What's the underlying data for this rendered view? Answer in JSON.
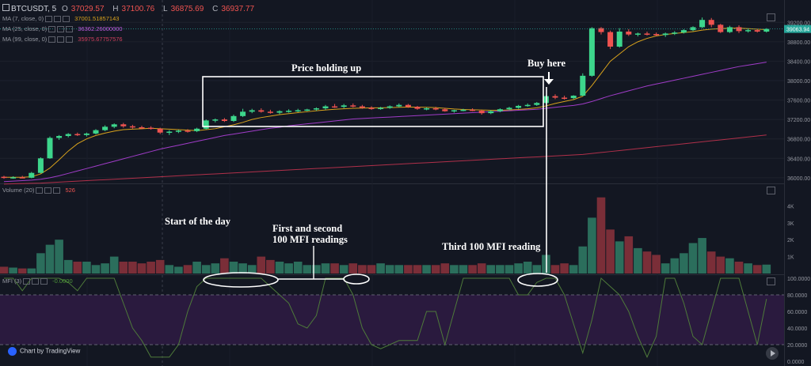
{
  "header": {
    "symbol": "BTCUSDT, 5",
    "open_label": "O",
    "open": "37029.57",
    "high_label": "H",
    "high": "37100.76",
    "low_label": "L",
    "low": "36875.69",
    "close_label": "C",
    "close": "36937.77"
  },
  "legends": {
    "ma7": {
      "label": "MA (7, close, 0)",
      "value": "37001.51857143"
    },
    "ma25": {
      "label": "MA (25, close, 0)",
      "value": "36362.26000000"
    },
    "ma99": {
      "label": "MA (99, close, 0)",
      "value": "35975.67757576"
    },
    "volume": {
      "label": "Volume (20)",
      "value": "526"
    },
    "mfi": {
      "label": "MFI (3)",
      "value": "-0.0000"
    }
  },
  "annotations": {
    "price_holding": "Price holding up",
    "buy_here": "Buy here",
    "start_of_day": "Start of the day",
    "first_second_line1": "First and second",
    "first_second_line2": "100 MFI readings",
    "third": "Third 100 MFI reading"
  },
  "branding": {
    "text": "Chart by TradingView"
  },
  "colors": {
    "background": "#131722",
    "up": "#26a69a",
    "up_bright": "#3dd68c",
    "down": "#ef5350",
    "volume_up": "#2b6e5c",
    "volume_down": "#7a2e38",
    "ma7": "#d8a21c",
    "ma25": "#a03cc8",
    "ma99": "#b0304a",
    "mfi_line": "#4e7a3a",
    "mfi_band": "#2a1a3e",
    "price_tag": "#26a69a"
  },
  "chart_data": [
    {
      "type": "candlestick",
      "title": "BTCUSDT, 5",
      "ylim": [
        35900,
        39400
      ],
      "y_ticks": [
        36000,
        36400,
        36800,
        37200,
        37600,
        38000,
        38400,
        38800,
        39200
      ],
      "y_tick_labels": [
        "36000.00",
        "36400.00",
        "36800.00",
        "37200.00",
        "37600.00",
        "38000.00",
        "38400.00",
        "38800.00",
        "39200.00"
      ],
      "last_price_label": "39063.94",
      "last_price": 39063.94,
      "ohlc": [
        [
          36020,
          36040,
          35980,
          36000
        ],
        [
          36000,
          36030,
          35980,
          36010
        ],
        [
          36010,
          36040,
          35990,
          36000
        ],
        [
          36000,
          36120,
          35990,
          36100
        ],
        [
          36100,
          36420,
          36090,
          36400
        ],
        [
          36400,
          36850,
          36390,
          36820
        ],
        [
          36820,
          36880,
          36780,
          36860
        ],
        [
          36860,
          36920,
          36830,
          36900
        ],
        [
          36900,
          36930,
          36860,
          36880
        ],
        [
          36880,
          36930,
          36850,
          36910
        ],
        [
          36910,
          37000,
          36890,
          36980
        ],
        [
          36980,
          37080,
          36960,
          37050
        ],
        [
          37050,
          37120,
          37020,
          37100
        ],
        [
          37100,
          37130,
          37030,
          37060
        ],
        [
          37060,
          37090,
          37010,
          37040
        ],
        [
          37040,
          37070,
          37000,
          37030
        ],
        [
          37030,
          37060,
          36990,
          37010
        ],
        [
          37010,
          37030,
          36900,
          36930
        ],
        [
          36930,
          36980,
          36880,
          36950
        ],
        [
          36950,
          36990,
          36920,
          36970
        ],
        [
          36970,
          37000,
          36930,
          36960
        ],
        [
          36960,
          37030,
          36940,
          37010
        ],
        [
          37010,
          37200,
          36990,
          37180
        ],
        [
          37180,
          37220,
          37140,
          37200
        ],
        [
          37200,
          37230,
          37150,
          37170
        ],
        [
          37170,
          37300,
          37150,
          37270
        ],
        [
          37270,
          37420,
          37250,
          37360
        ],
        [
          37360,
          37420,
          37330,
          37390
        ],
        [
          37390,
          37430,
          37340,
          37360
        ],
        [
          37360,
          37400,
          37320,
          37340
        ],
        [
          37340,
          37390,
          37310,
          37370
        ],
        [
          37370,
          37410,
          37340,
          37380
        ],
        [
          37380,
          37420,
          37350,
          37390
        ],
        [
          37390,
          37420,
          37370,
          37405
        ],
        [
          37405,
          37450,
          37380,
          37430
        ],
        [
          37430,
          37500,
          37400,
          37470
        ],
        [
          37470,
          37520,
          37440,
          37460
        ],
        [
          37460,
          37520,
          37430,
          37490
        ],
        [
          37490,
          37530,
          37450,
          37470
        ],
        [
          37470,
          37500,
          37420,
          37440
        ],
        [
          37440,
          37470,
          37400,
          37420
        ],
        [
          37420,
          37460,
          37400,
          37440
        ],
        [
          37440,
          37490,
          37420,
          37470
        ],
        [
          37470,
          37530,
          37450,
          37500
        ],
        [
          37500,
          37520,
          37440,
          37460
        ],
        [
          37460,
          37480,
          37400,
          37420
        ],
        [
          37420,
          37450,
          37390,
          37430
        ],
        [
          37430,
          37460,
          37390,
          37410
        ],
        [
          37410,
          37440,
          37360,
          37370
        ],
        [
          37370,
          37400,
          37340,
          37390
        ],
        [
          37390,
          37420,
          37370,
          37400
        ],
        [
          37400,
          37430,
          37370,
          37380
        ],
        [
          37380,
          37400,
          37300,
          37330
        ],
        [
          37330,
          37390,
          37310,
          37370
        ],
        [
          37370,
          37430,
          37350,
          37410
        ],
        [
          37410,
          37460,
          37390,
          37440
        ],
        [
          37440,
          37500,
          37420,
          37480
        ],
        [
          37480,
          37530,
          37460,
          37500
        ],
        [
          37500,
          37560,
          37480,
          37540
        ],
        [
          37540,
          37700,
          37520,
          37680
        ],
        [
          37680,
          37720,
          37620,
          37650
        ],
        [
          37650,
          37690,
          37610,
          37640
        ],
        [
          37640,
          37700,
          37620,
          37690
        ],
        [
          37690,
          38150,
          37680,
          38100
        ],
        [
          38100,
          39100,
          38080,
          39080
        ],
        [
          39080,
          39100,
          38950,
          39000
        ],
        [
          39000,
          39030,
          38650,
          38700
        ],
        [
          38700,
          39080,
          38680,
          39010
        ],
        [
          39010,
          39060,
          38920,
          38950
        ],
        [
          38950,
          38990,
          38910,
          38970
        ],
        [
          38970,
          39010,
          38930,
          38960
        ],
        [
          38960,
          38990,
          38920,
          38940
        ],
        [
          38940,
          38990,
          38900,
          38970
        ],
        [
          38970,
          39020,
          38940,
          38990
        ],
        [
          38990,
          39060,
          38970,
          39040
        ],
        [
          39040,
          39120,
          39020,
          39100
        ],
        [
          39100,
          39300,
          39080,
          39250
        ],
        [
          39250,
          39290,
          39100,
          39150
        ],
        [
          39150,
          39170,
          38980,
          39000
        ],
        [
          39000,
          39130,
          38980,
          39100
        ],
        [
          39100,
          39140,
          38980,
          39020
        ],
        [
          39020,
          39070,
          38990,
          39040
        ],
        [
          39040,
          39060,
          38990,
          39010
        ],
        [
          39010,
          39080,
          38990,
          39063.94
        ]
      ],
      "series": [
        {
          "name": "MA (7, close, 0)",
          "color": "#d8a21c",
          "values": [
            36010,
            36010,
            36010,
            36020,
            36080,
            36200,
            36370,
            36550,
            36700,
            36800,
            36870,
            36920,
            36960,
            36990,
            37000,
            37010,
            37020,
            37010,
            37000,
            36990,
            36980,
            36970,
            36990,
            37010,
            37050,
            37090,
            37140,
            37200,
            37240,
            37270,
            37300,
            37320,
            37340,
            37360,
            37380,
            37395,
            37410,
            37420,
            37430,
            37435,
            37440,
            37440,
            37445,
            37450,
            37455,
            37455,
            37450,
            37445,
            37430,
            37415,
            37405,
            37400,
            37395,
            37390,
            37390,
            37395,
            37405,
            37420,
            37440,
            37480,
            37530,
            37570,
            37610,
            37680,
            37900,
            38150,
            38400,
            38550,
            38700,
            38800,
            38870,
            38920,
            38950,
            38970,
            38990,
            39010,
            39040,
            39060,
            39070,
            39080,
            39080,
            39070,
            39060,
            39050
          ]
        },
        {
          "name": "MA (25, close, 0)",
          "color": "#a03cc8",
          "values": [
            35920,
            35930,
            35940,
            35950,
            35970,
            36000,
            36040,
            36090,
            36140,
            36190,
            36240,
            36290,
            36340,
            36390,
            36440,
            36490,
            36540,
            36590,
            36630,
            36670,
            36710,
            36750,
            36790,
            36830,
            36870,
            36900,
            36930,
            36960,
            36990,
            37020,
            37040,
            37070,
            37090,
            37110,
            37130,
            37150,
            37170,
            37190,
            37210,
            37220,
            37230,
            37240,
            37250,
            37260,
            37270,
            37280,
            37290,
            37300,
            37310,
            37320,
            37330,
            37340,
            37350,
            37360,
            37370,
            37380,
            37390,
            37400,
            37410,
            37430,
            37450,
            37470,
            37490,
            37520,
            37570,
            37630,
            37690,
            37740,
            37790,
            37840,
            37890,
            37930,
            37970,
            38010,
            38050,
            38090,
            38130,
            38170,
            38210,
            38250,
            38290,
            38320,
            38350,
            38380
          ]
        },
        {
          "name": "MA (99, close, 0)",
          "color": "#b0304a",
          "values": [
            35870,
            35875,
            35880,
            35885,
            35890,
            35900,
            35910,
            35920,
            35930,
            35940,
            35950,
            35960,
            35970,
            35980,
            35990,
            36000,
            36010,
            36020,
            36030,
            36040,
            36050,
            36060,
            36070,
            36080,
            36090,
            36100,
            36110,
            36120,
            36130,
            36140,
            36150,
            36160,
            36170,
            36180,
            36190,
            36200,
            36210,
            36220,
            36230,
            36240,
            36250,
            36260,
            36270,
            36280,
            36290,
            36300,
            36310,
            36320,
            36330,
            36340,
            36350,
            36360,
            36370,
            36380,
            36390,
            36400,
            36410,
            36420,
            36430,
            36440,
            36450,
            36460,
            36470,
            36480,
            36500,
            36520,
            36540,
            36560,
            36580,
            36600,
            36620,
            36640,
            36660,
            36680,
            36700,
            36720,
            36740,
            36760,
            36780,
            36800,
            36820,
            36840,
            36860,
            36880
          ]
        }
      ]
    },
    {
      "type": "bar",
      "title": "Volume (20)",
      "ylim": [
        0,
        5000
      ],
      "y_ticks": [
        1000,
        2000,
        3000,
        4000
      ],
      "y_tick_labels": [
        "1K",
        "2K",
        "3K",
        "4K"
      ],
      "values": [
        400,
        350,
        300,
        300,
        1200,
        1700,
        2000,
        800,
        700,
        700,
        500,
        600,
        1000,
        700,
        700,
        600,
        700,
        800,
        500,
        400,
        500,
        700,
        500,
        600,
        900,
        700,
        600,
        500,
        1000,
        800,
        700,
        600,
        700,
        500,
        500,
        600,
        600,
        500,
        600,
        500,
        500,
        600,
        500,
        500,
        500,
        500,
        500,
        500,
        600,
        500,
        500,
        500,
        600,
        500,
        500,
        500,
        600,
        700,
        500,
        1100,
        500,
        600,
        500,
        1600,
        3300,
        4500,
        2600,
        1900,
        2200,
        1500,
        1300,
        1100,
        600,
        900,
        1200,
        1800,
        2100,
        1300,
        1000,
        900,
        700,
        600,
        500,
        526
      ]
    },
    {
      "type": "line",
      "title": "MFI (3)",
      "ylim": [
        0,
        100
      ],
      "y_ticks": [
        0,
        20,
        40,
        60,
        80,
        100
      ],
      "y_tick_labels": [
        "0.0000",
        "20.0000",
        "40.0000",
        "60.0000",
        "80.0000",
        "100.0000"
      ],
      "bands": [
        20,
        80
      ],
      "values": [
        100,
        100,
        85,
        100,
        100,
        100,
        100,
        95,
        85,
        100,
        100,
        100,
        100,
        70,
        40,
        25,
        5,
        5,
        5,
        20,
        60,
        90,
        100,
        100,
        100,
        100,
        100,
        100,
        100,
        90,
        80,
        70,
        45,
        40,
        55,
        100,
        100,
        100,
        80,
        40,
        20,
        15,
        20,
        25,
        25,
        25,
        60,
        60,
        20,
        60,
        100,
        100,
        100,
        100,
        100,
        100,
        80,
        80,
        95,
        100,
        100,
        80,
        45,
        10,
        50,
        100,
        90,
        80,
        60,
        30,
        5,
        30,
        100,
        100,
        70,
        30,
        20,
        60,
        100,
        100,
        100,
        60,
        20,
        75
      ]
    }
  ]
}
